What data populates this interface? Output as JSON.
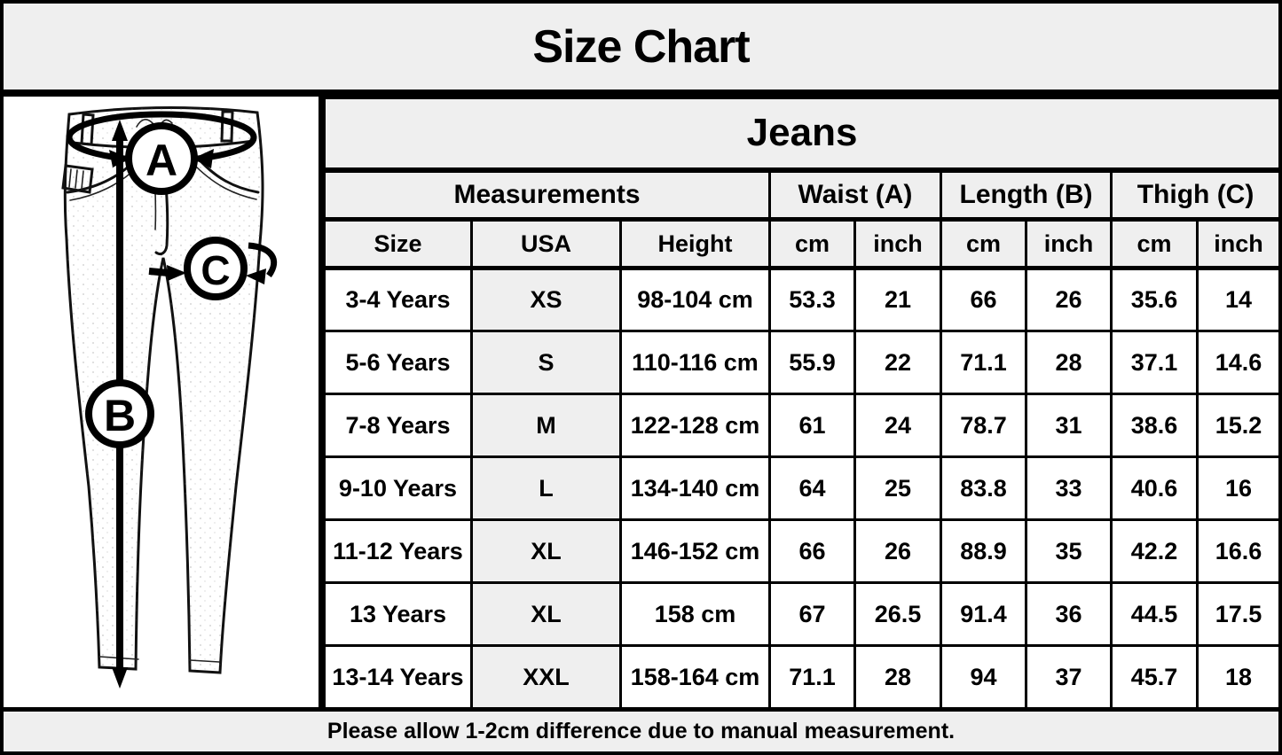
{
  "title": "Size Chart",
  "diagram": {
    "labels": {
      "waist": "A",
      "length": "B",
      "thigh": "C"
    }
  },
  "chart_data": {
    "type": "table",
    "title": "Jeans",
    "group_headers": [
      {
        "label": "Measurements",
        "span": 3
      },
      {
        "label": "Waist (A)",
        "span": 2
      },
      {
        "label": "Length (B)",
        "span": 2
      },
      {
        "label": "Thigh (C)",
        "span": 2
      }
    ],
    "columns": [
      "Size",
      "USA",
      "Height",
      "cm",
      "inch",
      "cm",
      "inch",
      "cm",
      "inch"
    ],
    "rows": [
      [
        "3-4 Years",
        "XS",
        "98-104 cm",
        "53.3",
        "21",
        "66",
        "26",
        "35.6",
        "14"
      ],
      [
        "5-6 Years",
        "S",
        "110-116 cm",
        "55.9",
        "22",
        "71.1",
        "28",
        "37.1",
        "14.6"
      ],
      [
        "7-8 Years",
        "M",
        "122-128 cm",
        "61",
        "24",
        "78.7",
        "31",
        "38.6",
        "15.2"
      ],
      [
        "9-10 Years",
        "L",
        "134-140 cm",
        "64",
        "25",
        "83.8",
        "33",
        "40.6",
        "16"
      ],
      [
        "11-12 Years",
        "XL",
        "146-152 cm",
        "66",
        "26",
        "88.9",
        "35",
        "42.2",
        "16.6"
      ],
      [
        "13 Years",
        "XL",
        "158 cm",
        "67",
        "26.5",
        "91.4",
        "36",
        "44.5",
        "17.5"
      ],
      [
        "13-14 Years",
        "XXL",
        "158-164 cm",
        "71.1",
        "28",
        "94",
        "37",
        "45.7",
        "18"
      ]
    ]
  },
  "footer": {
    "note": "Please allow 1-2cm difference due to manual measurement."
  },
  "colors": {
    "background": "#efefef",
    "cell_white": "#ffffff",
    "border": "#000000",
    "shade": "#efefef",
    "text": "#000000"
  }
}
